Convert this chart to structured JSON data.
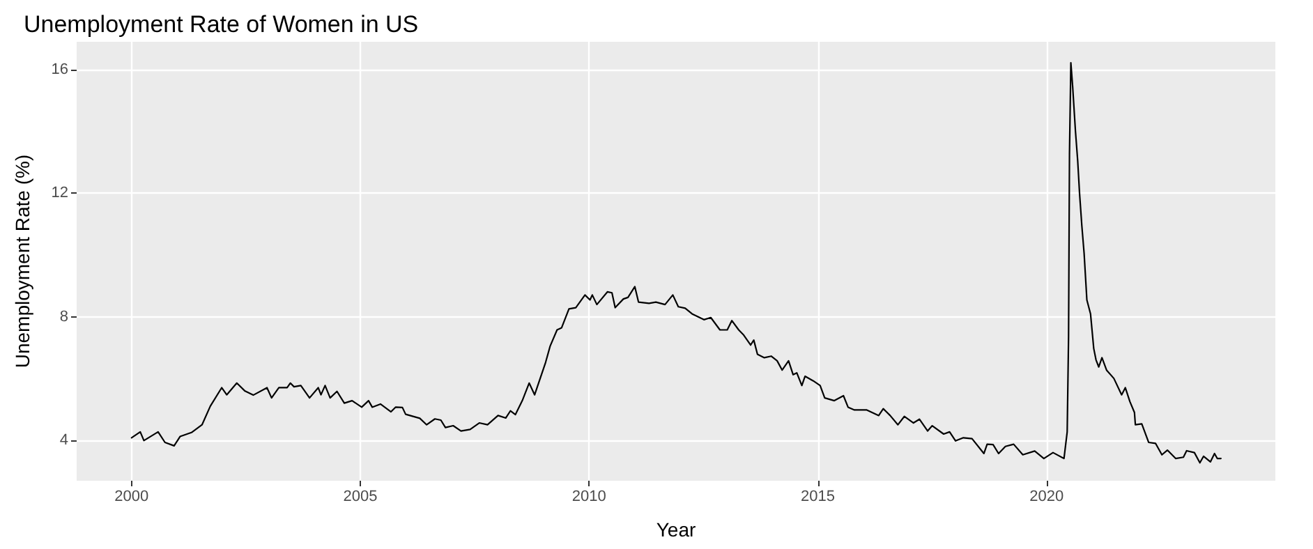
{
  "chart_data": {
    "type": "line",
    "title": "Unemployment Rate of Women in US",
    "xlabel": "Year",
    "ylabel": "Unemployment Rate (%)",
    "xlim": [
      1998.8,
      2025.0
    ],
    "xticks": [
      2000,
      2005,
      2010,
      2015,
      2020
    ],
    "ylim": [
      2.7,
      16.9
    ],
    "yticks": [
      4,
      8,
      12,
      16
    ],
    "grid": true,
    "marker": "none",
    "line_style": "solid",
    "x": [
      2000.0,
      2000.19,
      2000.27,
      2000.58,
      2000.73,
      2000.93,
      2001.06,
      2001.31,
      2001.54,
      2001.72,
      2001.97,
      2002.08,
      2002.3,
      2002.48,
      2002.66,
      2002.96,
      2003.06,
      2003.22,
      2003.4,
      2003.47,
      2003.55,
      2003.7,
      2003.89,
      2004.08,
      2004.14,
      2004.23,
      2004.34,
      2004.49,
      2004.65,
      2004.82,
      2005.03,
      2005.18,
      2005.26,
      2005.44,
      2005.67,
      2005.77,
      2005.92,
      2005.99,
      2006.3,
      2006.45,
      2006.63,
      2006.76,
      2006.86,
      2007.03,
      2007.2,
      2007.4,
      2007.6,
      2007.78,
      2008.01,
      2008.18,
      2008.28,
      2008.39,
      2008.54,
      2008.69,
      2008.81,
      2009.05,
      2009.15,
      2009.3,
      2009.4,
      2009.56,
      2009.71,
      2009.91,
      2010.02,
      2010.07,
      2010.17,
      2010.4,
      2010.5,
      2010.57,
      2010.75,
      2010.85,
      2011.0,
      2011.08,
      2011.31,
      2011.46,
      2011.66,
      2011.83,
      2011.95,
      2012.1,
      2012.25,
      2012.51,
      2012.66,
      2012.86,
      2013.02,
      2013.12,
      2013.27,
      2013.37,
      2013.53,
      2013.6,
      2013.68,
      2013.83,
      2013.98,
      2014.11,
      2014.22,
      2014.36,
      2014.46,
      2014.54,
      2014.65,
      2014.72,
      2014.9,
      2015.05,
      2015.15,
      2015.36,
      2015.56,
      2015.66,
      2015.8,
      2016.07,
      2016.33,
      2016.43,
      2016.58,
      2016.75,
      2016.89,
      2017.09,
      2017.22,
      2017.4,
      2017.5,
      2017.75,
      2017.88,
      2018.01,
      2018.18,
      2018.37,
      2018.63,
      2018.7,
      2018.83,
      2018.95,
      2019.1,
      2019.28,
      2019.48,
      2019.74,
      2019.94,
      2020.14,
      2020.38,
      2020.45,
      2020.48,
      2020.5,
      2020.53,
      2020.57,
      2020.63,
      2020.68,
      2020.72,
      2020.77,
      2020.82,
      2020.88,
      2020.96,
      2021.03,
      2021.08,
      2021.14,
      2021.21,
      2021.31,
      2021.47,
      2021.64,
      2021.72,
      2021.82,
      2021.92,
      2021.94,
      2022.08,
      2022.23,
      2022.38,
      2022.52,
      2022.64,
      2022.82,
      2022.99,
      2023.06,
      2023.23,
      2023.35,
      2023.43,
      2023.58,
      2023.67,
      2023.73,
      2023.81
    ],
    "series": [
      {
        "color": "#000000",
        "values": [
          4.09,
          4.28,
          4.0,
          4.28,
          3.94,
          3.83,
          4.13,
          4.26,
          4.51,
          5.11,
          5.71,
          5.48,
          5.86,
          5.6,
          5.47,
          5.71,
          5.38,
          5.71,
          5.71,
          5.86,
          5.74,
          5.78,
          5.38,
          5.71,
          5.48,
          5.78,
          5.38,
          5.59,
          5.21,
          5.29,
          5.08,
          5.29,
          5.08,
          5.18,
          4.93,
          5.08,
          5.07,
          4.85,
          4.72,
          4.51,
          4.7,
          4.66,
          4.42,
          4.48,
          4.31,
          4.36,
          4.57,
          4.51,
          4.81,
          4.73,
          4.96,
          4.84,
          5.29,
          5.86,
          5.48,
          6.53,
          7.06,
          7.58,
          7.65,
          8.26,
          8.3,
          8.71,
          8.55,
          8.71,
          8.4,
          8.81,
          8.78,
          8.3,
          8.58,
          8.63,
          8.98,
          8.48,
          8.44,
          8.48,
          8.4,
          8.71,
          8.33,
          8.28,
          8.1,
          7.91,
          7.98,
          7.58,
          7.58,
          7.88,
          7.58,
          7.43,
          7.09,
          7.25,
          6.79,
          6.68,
          6.73,
          6.58,
          6.28,
          6.58,
          6.13,
          6.19,
          5.78,
          6.08,
          5.93,
          5.78,
          5.38,
          5.29,
          5.45,
          5.08,
          4.99,
          4.99,
          4.81,
          5.03,
          4.81,
          4.51,
          4.78,
          4.57,
          4.69,
          4.31,
          4.48,
          4.21,
          4.28,
          3.99,
          4.09,
          4.06,
          3.58,
          3.88,
          3.87,
          3.58,
          3.81,
          3.88,
          3.54,
          3.66,
          3.42,
          3.61,
          3.42,
          4.28,
          7.36,
          13.27,
          16.22,
          15.44,
          14.02,
          13.04,
          12.0,
          10.95,
          10.05,
          8.55,
          8.1,
          6.98,
          6.61,
          6.38,
          6.68,
          6.28,
          6.01,
          5.48,
          5.71,
          5.26,
          4.91,
          4.51,
          4.54,
          3.94,
          3.91,
          3.54,
          3.69,
          3.42,
          3.46,
          3.67,
          3.61,
          3.28,
          3.49,
          3.31,
          3.58,
          3.42,
          3.42
        ]
      }
    ]
  }
}
